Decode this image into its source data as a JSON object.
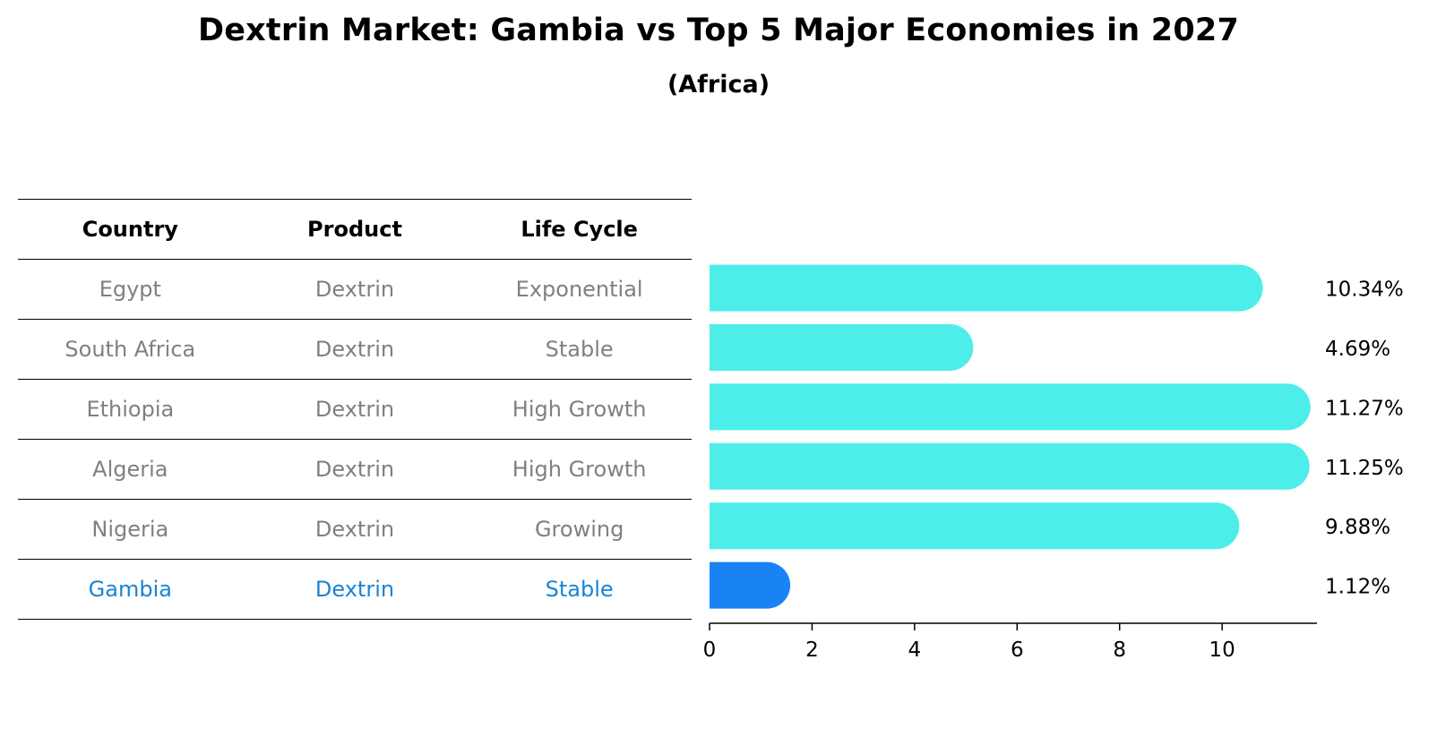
{
  "title": "Dextrin Market: Gambia vs Top 5 Major Economies in 2027",
  "subtitle": "(Africa)",
  "table": {
    "headers": [
      "Country",
      "Product",
      "Life Cycle"
    ],
    "rows": [
      [
        "Egypt",
        "Dextrin",
        "Exponential"
      ],
      [
        "South Africa",
        "Dextrin",
        "Stable"
      ],
      [
        "Ethiopia",
        "Dextrin",
        "High Growth"
      ],
      [
        "Algeria",
        "Dextrin",
        "High Growth"
      ],
      [
        "Nigeria",
        "Dextrin",
        "Growing"
      ],
      [
        "Gambia",
        "Dextrin",
        "Stable"
      ]
    ]
  },
  "colors": {
    "bar": "#4deeea",
    "highlight": "#1a83f4",
    "table_text": "#808080",
    "highlight_text": "#1a83d4"
  },
  "chart_data": {
    "type": "bar",
    "orientation": "horizontal",
    "title": "Dextrin Market: Gambia vs Top 5 Major Economies in 2027",
    "subtitle": "(Africa)",
    "categories": [
      "Egypt",
      "South Africa",
      "Ethiopia",
      "Algeria",
      "Nigeria",
      "Gambia"
    ],
    "values": [
      10.34,
      4.69,
      11.27,
      11.25,
      9.88,
      1.12
    ],
    "value_labels": [
      "10.34%",
      "4.69%",
      "11.27%",
      "11.25%",
      "9.88%",
      "1.12%"
    ],
    "highlight_category": "Gambia",
    "xlim": [
      0,
      11.85
    ],
    "xticks": [
      0,
      2,
      4,
      6,
      8,
      10
    ],
    "xlabel": "",
    "ylabel": "",
    "grid": false
  }
}
